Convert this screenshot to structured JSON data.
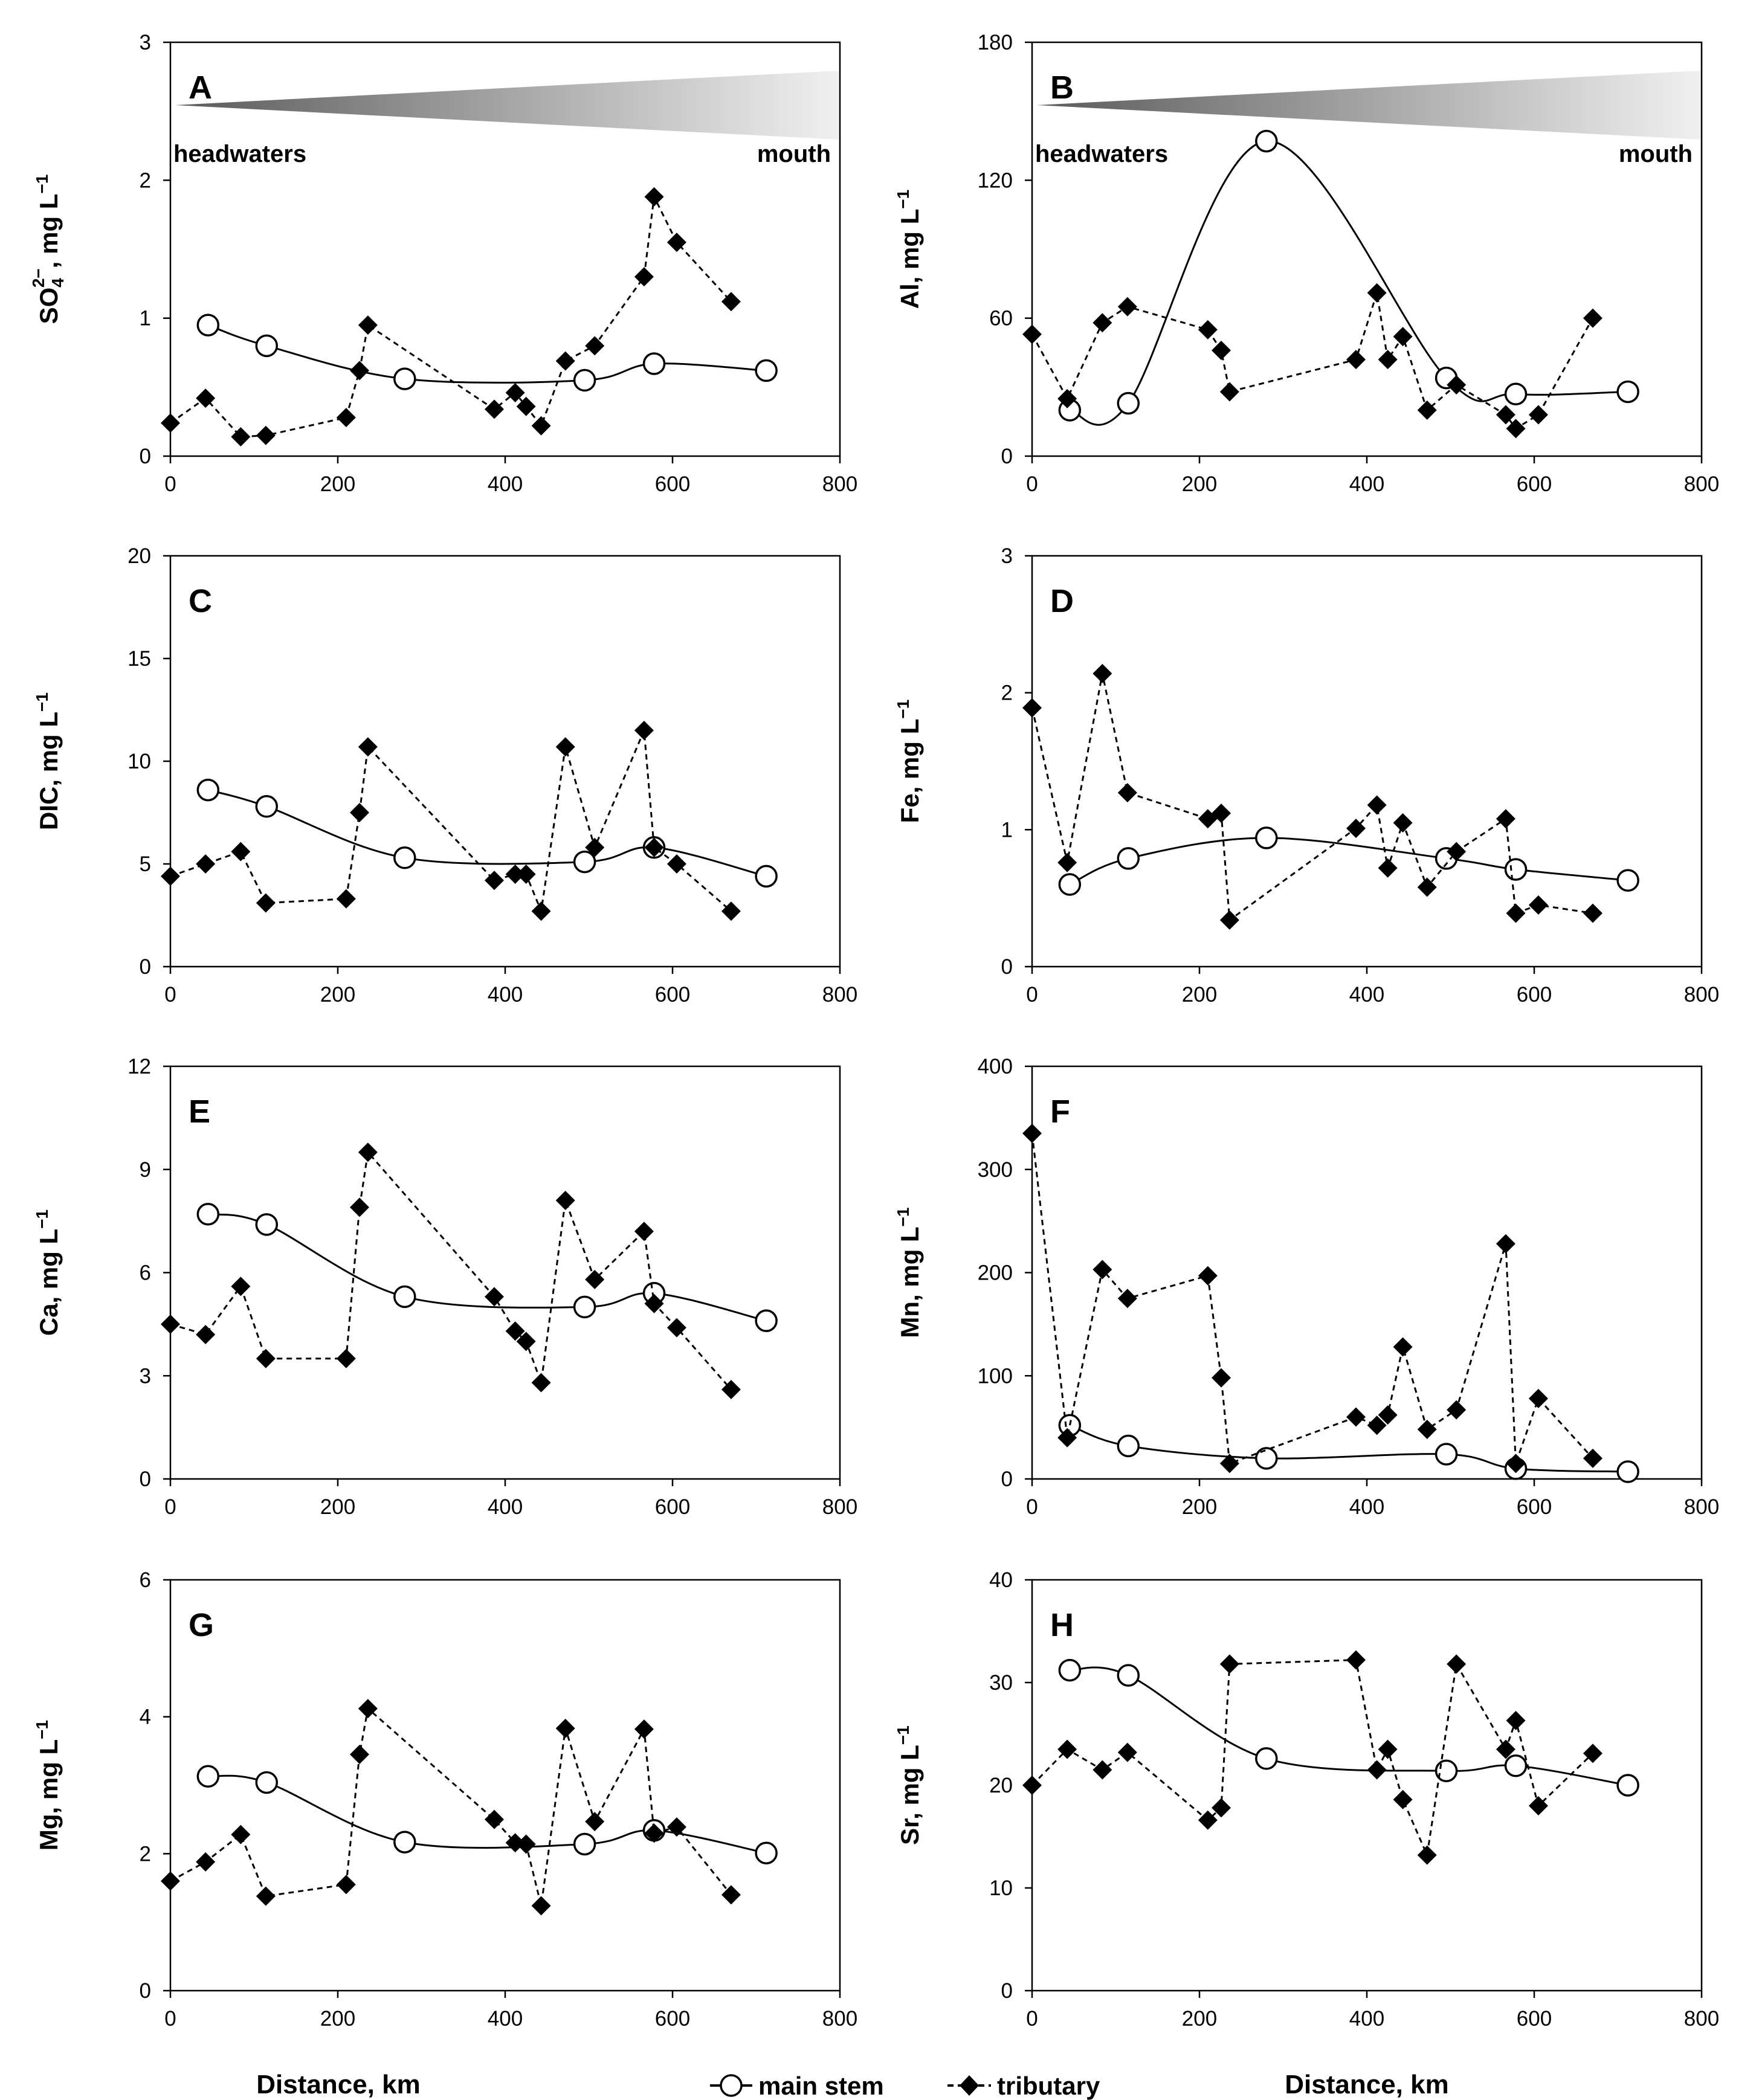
{
  "figure": {
    "xlabel": "Distance, km",
    "legend": [
      {
        "name": "main stem",
        "style": "solid line, open circle"
      },
      {
        "name": "tributary",
        "style": "dashed line, filled diamond"
      }
    ],
    "gradient_labels": {
      "start": "headwaters",
      "end": "mouth"
    }
  },
  "chart_data": [
    {
      "panel": "A",
      "type": "line",
      "ylabel_parts": [
        "SO",
        "4",
        "2−",
        ", mg L",
        "−1"
      ],
      "xlim": [
        0,
        800
      ],
      "ylim": [
        0,
        3
      ],
      "xticks": [
        0,
        200,
        400,
        600,
        800
      ],
      "yticks": [
        0,
        1,
        2,
        3
      ],
      "gradient": true,
      "series": [
        {
          "name": "main stem",
          "x": [
            45,
            115,
            280,
            495,
            578,
            712
          ],
          "y": [
            0.95,
            0.8,
            0.56,
            0.55,
            0.67,
            0.62
          ]
        },
        {
          "name": "tributary",
          "x": [
            0,
            42,
            84,
            114,
            210,
            226,
            236,
            387,
            412,
            425,
            443,
            472,
            507,
            566,
            578,
            605,
            670
          ],
          "y": [
            0.24,
            0.42,
            0.14,
            0.15,
            0.28,
            0.62,
            0.95,
            0.34,
            0.46,
            0.36,
            0.22,
            0.69,
            0.8,
            1.3,
            1.88,
            1.55,
            1.12
          ]
        }
      ]
    },
    {
      "panel": "B",
      "type": "line",
      "ylabel_parts": [
        "Al, mg L",
        "−1"
      ],
      "xlim": [
        0,
        800
      ],
      "ylim": [
        0,
        180
      ],
      "xticks": [
        0,
        200,
        400,
        600,
        800
      ],
      "yticks": [
        0,
        60,
        120,
        180
      ],
      "gradient": true,
      "series": [
        {
          "name": "main stem",
          "x": [
            45,
            115,
            280,
            495,
            578,
            712
          ],
          "y": [
            20,
            23,
            137,
            34,
            27,
            28
          ]
        },
        {
          "name": "tributary",
          "x": [
            0,
            42,
            84,
            114,
            210,
            226,
            236,
            387,
            412,
            425,
            443,
            472,
            507,
            566,
            578,
            605,
            670
          ],
          "y": [
            53,
            25,
            58,
            65,
            55,
            46,
            28,
            42,
            71,
            42,
            52,
            20,
            31,
            18,
            12,
            18,
            60
          ]
        }
      ]
    },
    {
      "panel": "C",
      "type": "line",
      "ylabel_parts": [
        "DIC, mg L",
        "−1"
      ],
      "xlim": [
        0,
        800
      ],
      "ylim": [
        0,
        20
      ],
      "xticks": [
        0,
        200,
        400,
        600,
        800
      ],
      "yticks": [
        0,
        5,
        10,
        15,
        20
      ],
      "gradient": false,
      "series": [
        {
          "name": "main stem",
          "x": [
            45,
            115,
            280,
            495,
            578,
            712
          ],
          "y": [
            8.6,
            7.8,
            5.3,
            5.1,
            5.8,
            4.4
          ]
        },
        {
          "name": "tributary",
          "x": [
            0,
            42,
            84,
            114,
            210,
            226,
            236,
            387,
            412,
            425,
            443,
            472,
            507,
            566,
            578,
            605,
            670
          ],
          "y": [
            4.4,
            5.0,
            5.6,
            3.1,
            3.3,
            7.5,
            10.7,
            4.2,
            4.5,
            4.5,
            2.7,
            10.7,
            5.8,
            11.5,
            5.8,
            5.0,
            2.7
          ]
        }
      ]
    },
    {
      "panel": "D",
      "type": "line",
      "ylabel_parts": [
        "Fe, mg L",
        "−1"
      ],
      "xlim": [
        0,
        800
      ],
      "ylim": [
        0,
        3
      ],
      "xticks": [
        0,
        200,
        400,
        600,
        800
      ],
      "yticks": [
        0,
        1,
        2,
        3
      ],
      "gradient": false,
      "series": [
        {
          "name": "main stem",
          "x": [
            45,
            115,
            280,
            495,
            578,
            712
          ],
          "y": [
            0.6,
            0.79,
            0.94,
            0.79,
            0.71,
            0.63
          ]
        },
        {
          "name": "tributary",
          "x": [
            0,
            42,
            84,
            114,
            210,
            226,
            236,
            387,
            412,
            425,
            443,
            472,
            507,
            566,
            578,
            605,
            670
          ],
          "y": [
            1.89,
            0.76,
            2.14,
            1.27,
            1.08,
            1.12,
            0.34,
            1.01,
            1.18,
            0.72,
            1.05,
            0.58,
            0.84,
            1.08,
            0.39,
            0.45,
            0.39
          ]
        }
      ]
    },
    {
      "panel": "E",
      "type": "line",
      "ylabel_parts": [
        "Ca, mg L",
        "−1"
      ],
      "xlim": [
        0,
        800
      ],
      "ylim": [
        0,
        12
      ],
      "xticks": [
        0,
        200,
        400,
        600,
        800
      ],
      "yticks": [
        0,
        3,
        6,
        9,
        12
      ],
      "gradient": false,
      "series": [
        {
          "name": "main stem",
          "x": [
            45,
            115,
            280,
            495,
            578,
            712
          ],
          "y": [
            7.7,
            7.4,
            5.3,
            5.0,
            5.4,
            4.6
          ]
        },
        {
          "name": "tributary",
          "x": [
            0,
            42,
            84,
            114,
            210,
            226,
            236,
            387,
            412,
            425,
            443,
            472,
            507,
            566,
            578,
            605,
            670
          ],
          "y": [
            4.5,
            4.2,
            5.6,
            3.5,
            3.5,
            7.9,
            9.5,
            5.3,
            4.3,
            4.0,
            2.8,
            8.1,
            5.8,
            7.2,
            5.1,
            4.4,
            2.6
          ]
        }
      ]
    },
    {
      "panel": "F",
      "type": "line",
      "ylabel_parts": [
        "Mn, mg L",
        "−1"
      ],
      "xlim": [
        0,
        800
      ],
      "ylim": [
        0,
        400
      ],
      "xticks": [
        0,
        200,
        400,
        600,
        800
      ],
      "yticks": [
        0,
        100,
        200,
        300,
        400
      ],
      "gradient": false,
      "series": [
        {
          "name": "main stem",
          "x": [
            45,
            115,
            280,
            495,
            578,
            712
          ],
          "y": [
            52,
            32,
            20,
            24,
            10,
            7
          ]
        },
        {
          "name": "tributary",
          "x": [
            0,
            42,
            84,
            114,
            210,
            226,
            236,
            387,
            412,
            425,
            443,
            472,
            507,
            566,
            578,
            605,
            670
          ],
          "y": [
            335,
            40,
            203,
            175,
            197,
            98,
            15,
            60,
            52,
            62,
            128,
            48,
            67,
            228,
            15,
            78,
            20
          ]
        }
      ]
    },
    {
      "panel": "G",
      "type": "line",
      "ylabel_parts": [
        "Mg, mg L",
        "−1"
      ],
      "xlim": [
        0,
        800
      ],
      "ylim": [
        0,
        6
      ],
      "xticks": [
        0,
        200,
        400,
        600,
        800
      ],
      "yticks": [
        0,
        2,
        4,
        6
      ],
      "gradient": false,
      "series": [
        {
          "name": "main stem",
          "x": [
            45,
            115,
            280,
            495,
            578,
            712
          ],
          "y": [
            3.13,
            3.04,
            2.17,
            2.14,
            2.34,
            2.01
          ]
        },
        {
          "name": "tributary",
          "x": [
            0,
            42,
            84,
            114,
            210,
            226,
            236,
            387,
            412,
            425,
            443,
            472,
            507,
            566,
            578,
            605,
            670
          ],
          "y": [
            1.6,
            1.88,
            2.28,
            1.38,
            1.55,
            3.45,
            4.12,
            2.5,
            2.16,
            2.14,
            1.24,
            3.83,
            2.47,
            3.82,
            2.3,
            2.39,
            1.4
          ]
        }
      ]
    },
    {
      "panel": "H",
      "type": "line",
      "ylabel_parts": [
        "Sr, mg L",
        "−1"
      ],
      "xlim": [
        0,
        800
      ],
      "ylim": [
        0,
        40
      ],
      "xticks": [
        0,
        200,
        400,
        600,
        800
      ],
      "yticks": [
        0,
        10,
        20,
        30,
        40
      ],
      "gradient": false,
      "series": [
        {
          "name": "main stem",
          "x": [
            45,
            115,
            280,
            495,
            578,
            712
          ],
          "y": [
            31.2,
            30.7,
            22.6,
            21.4,
            21.9,
            20.0
          ]
        },
        {
          "name": "tributary",
          "x": [
            0,
            42,
            84,
            114,
            210,
            226,
            236,
            387,
            412,
            425,
            443,
            472,
            507,
            566,
            578,
            605,
            670
          ],
          "y": [
            20.0,
            23.5,
            21.5,
            23.2,
            16.6,
            17.8,
            31.8,
            32.2,
            21.5,
            23.5,
            18.6,
            13.2,
            31.8,
            23.5,
            26.3,
            18.0,
            23.1
          ]
        }
      ]
    }
  ]
}
